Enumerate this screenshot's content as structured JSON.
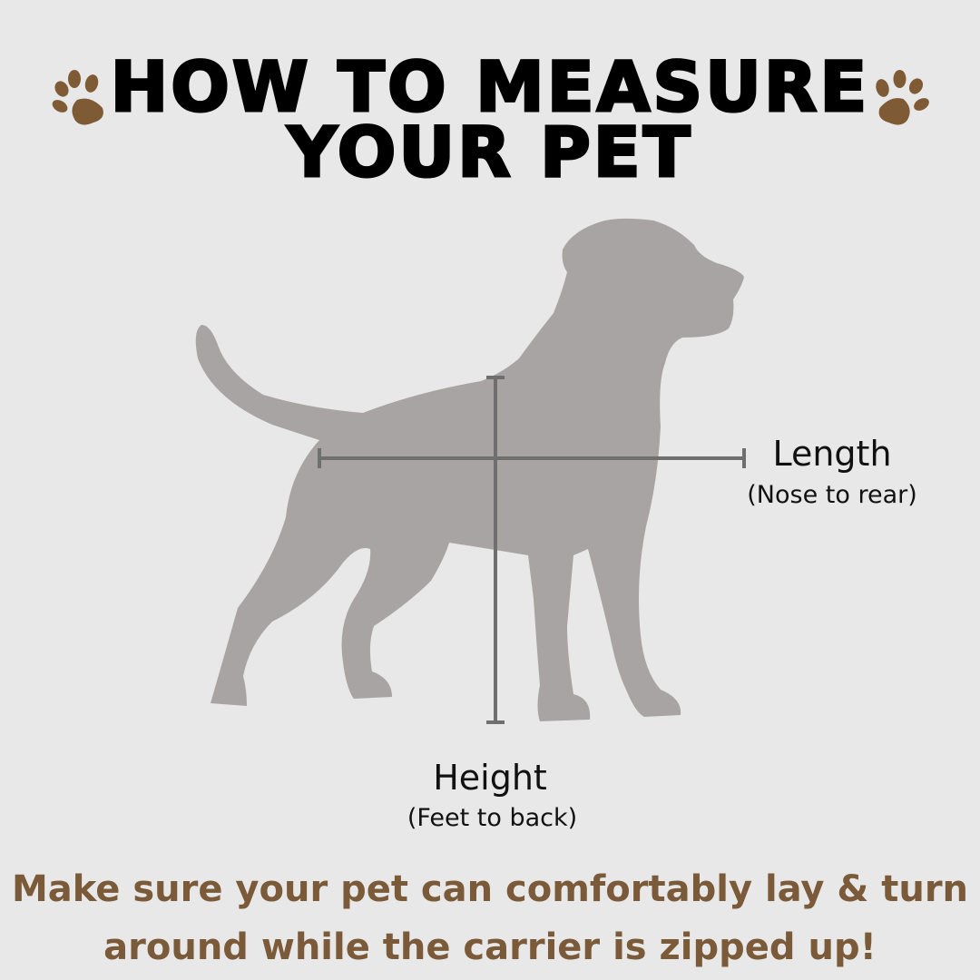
{
  "title": {
    "line1": "HOW TO MEASURE",
    "line2": "YOUR PET"
  },
  "icons": {
    "paw": "paw-print-icon",
    "dog": "dog-silhouette"
  },
  "colors": {
    "background": "#e8e8e8",
    "paw": "#7e5a35",
    "dog": "#a8a4a3",
    "measure_line": "#6f6f6f",
    "note": "#7a5a38"
  },
  "length": {
    "label": "Length",
    "sub": "(Nose to rear)"
  },
  "height": {
    "label": "Height",
    "sub": "(Feet to back)"
  },
  "note": {
    "line1": "Make sure your pet can comfortably lay & turn",
    "line2": "around while the carrier is zipped up!"
  }
}
